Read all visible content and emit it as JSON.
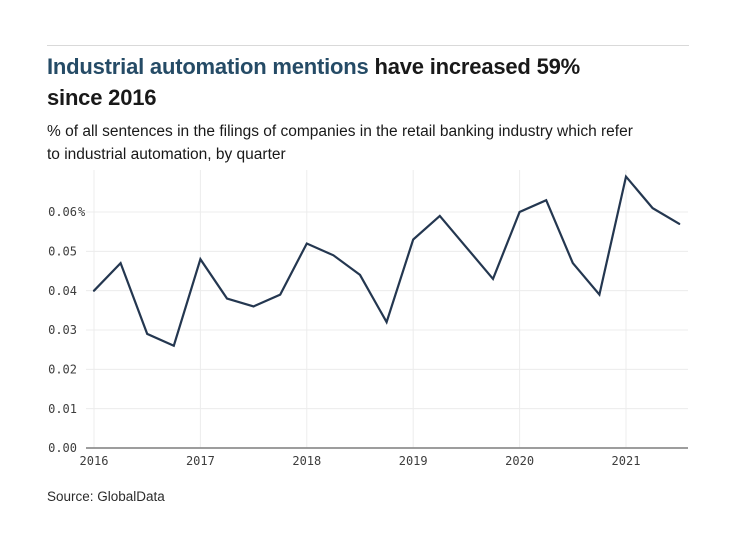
{
  "header": {
    "title_highlight": "Industrial automation mentions",
    "title_rest": " have increased 59%",
    "title_line2": "since 2016",
    "subtitle": "% of all sentences in the filings of companies in the retail banking industry which refer to industrial automation, by quarter"
  },
  "footer": {
    "source": "Source: GlobalData"
  },
  "colors": {
    "accent_blue": "#254b66",
    "line": "#243750",
    "gridline": "#ececec",
    "axis": "#8f8f8f",
    "tick_text": "#3d3d3d"
  },
  "chart_data": {
    "type": "line",
    "title": "Industrial automation mentions have increased 59% since 2016",
    "ylabel": "% of all sentences in filings, by quarter",
    "xlabel": "",
    "x": [
      "Q1 2016",
      "Q2 2016",
      "Q3 2016",
      "Q4 2016",
      "Q1 2017",
      "Q2 2017",
      "Q3 2017",
      "Q4 2017",
      "Q1 2018",
      "Q2 2018",
      "Q3 2018",
      "Q4 2018",
      "Q1 2019",
      "Q2 2019",
      "Q3 2019",
      "Q4 2019",
      "Q1 2020",
      "Q2 2020",
      "Q3 2020",
      "Q4 2020",
      "Q1 2021",
      "Q2 2021",
      "Q3 2021"
    ],
    "values": [
      0.04,
      0.047,
      0.029,
      0.026,
      0.048,
      0.038,
      0.036,
      0.039,
      0.052,
      0.049,
      0.044,
      0.032,
      0.053,
      0.059,
      0.051,
      0.043,
      0.06,
      0.063,
      0.047,
      0.039,
      0.069,
      0.061,
      0.057
    ],
    "x_tick_labels": [
      "2016",
      "2017",
      "2018",
      "2019",
      "2020",
      "2021"
    ],
    "y_ticks": [
      {
        "value": 0.0,
        "label": "0.00"
      },
      {
        "value": 0.01,
        "label": "0.01"
      },
      {
        "value": 0.02,
        "label": "0.02"
      },
      {
        "value": 0.03,
        "label": "0.03"
      },
      {
        "value": 0.04,
        "label": "0.04"
      },
      {
        "value": 0.05,
        "label": "0.05"
      },
      {
        "value": 0.06,
        "label": "0.06%"
      }
    ],
    "ylim": [
      0,
      0.0707
    ],
    "grid": true,
    "legend": false
  }
}
